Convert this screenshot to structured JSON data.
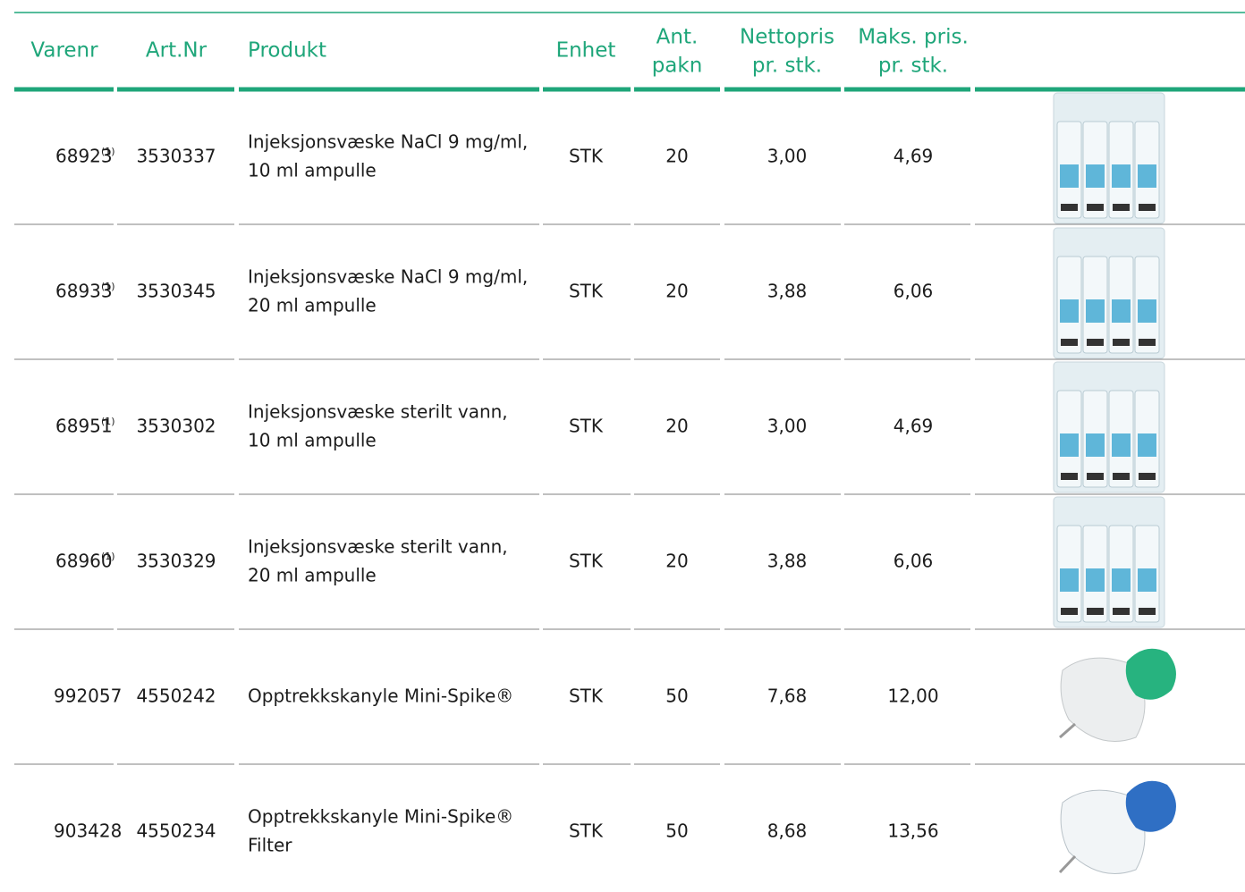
{
  "header": {
    "columns": [
      [
        "Varenr"
      ],
      [
        "Art.Nr"
      ],
      [
        "Produkt"
      ],
      [
        "Enhet"
      ],
      [
        "Ant.",
        "pakn"
      ],
      [
        "Nettopris",
        "pr. stk."
      ],
      [
        "Maks. pris.",
        "pr. stk."
      ]
    ]
  },
  "table": {
    "rows": [
      {
        "varenr": "68923",
        "note": "(1)",
        "artnr": "3530337",
        "produkt": [
          "Injeksjonsvæske NaCl 9 mg/ml,",
          "10 ml ampulle"
        ],
        "enhet": "STK",
        "antall": "20",
        "nettopris": "3,00",
        "makspris": "4,69"
      },
      {
        "varenr": "68933",
        "note": "(1)",
        "artnr": "3530345",
        "produkt": [
          "Injeksjonsvæske NaCl 9 mg/ml,",
          "20 ml ampulle"
        ],
        "enhet": "STK",
        "antall": "20",
        "nettopris": "3,88",
        "makspris": "6,06"
      },
      {
        "varenr": "68951",
        "note": "(1)",
        "artnr": "3530302",
        "produkt": [
          "Injeksjonsvæske sterilt vann,",
          "10 ml ampulle"
        ],
        "enhet": "STK",
        "antall": "20",
        "nettopris": "3,00",
        "makspris": "4,69"
      },
      {
        "varenr": "68960",
        "note": "(1)",
        "artnr": "3530329",
        "produkt": [
          "Injeksjonsvæske sterilt vann,",
          "20 ml ampulle"
        ],
        "enhet": "STK",
        "antall": "20",
        "nettopris": "3,88",
        "makspris": "6,06"
      },
      {
        "varenr": "992057",
        "artnr": "4550242",
        "produkt": [
          "Opptrekkskanyle Mini-Spike®"
        ],
        "enhet": "STK",
        "antall": "50",
        "nettopris": "7,68",
        "makspris": "12,00"
      },
      {
        "varenr": "903428",
        "artnr": "4550234",
        "produkt": [
          "Opptrekkskanyle Mini-Spike®",
          "Filter"
        ],
        "enhet": "STK",
        "antall": "50",
        "nettopris": "8,68",
        "makspris": "13,56"
      }
    ]
  }
}
